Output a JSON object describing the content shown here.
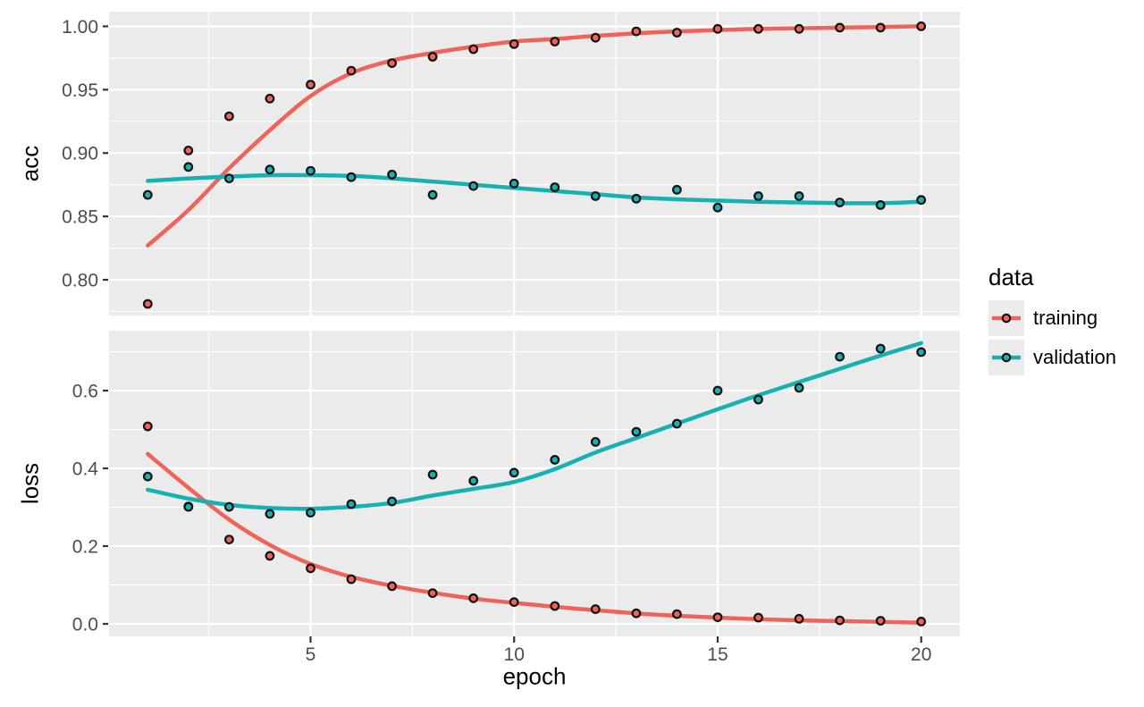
{
  "chart_data": {
    "type": "scatter",
    "title": "",
    "xlabel": "epoch",
    "x": [
      1,
      2,
      3,
      4,
      5,
      6,
      7,
      8,
      9,
      10,
      11,
      12,
      13,
      14,
      15,
      16,
      17,
      18,
      19,
      20
    ],
    "xlim": [
      0.05,
      20.95
    ],
    "x_major": [
      {
        "label": "5",
        "v": 5
      },
      {
        "label": "10",
        "v": 10
      },
      {
        "label": "15",
        "v": 15
      },
      {
        "label": "20",
        "v": 20
      }
    ],
    "x_minor": [
      2.5,
      7.5,
      12.5,
      17.5
    ],
    "grid": "major+minor, white on grey panel",
    "legend": {
      "title": "data",
      "position": "right",
      "entries": [
        "training",
        "validation"
      ]
    },
    "facets": [
      {
        "ylabel": "acc",
        "ylim": [
          0.7718,
          1.0116
        ],
        "y_major": [
          {
            "label": "1.00",
            "v": 1.0
          },
          {
            "label": "0.95",
            "v": 0.95
          },
          {
            "label": "0.90",
            "v": 0.9
          },
          {
            "label": "0.85",
            "v": 0.85
          },
          {
            "label": "0.80",
            "v": 0.8
          }
        ],
        "y_minor": [
          0.775,
          0.825,
          0.875,
          0.925,
          0.975
        ],
        "series": [
          {
            "name": "training",
            "points": [
              0.781,
              0.902,
              0.929,
              0.943,
              0.954,
              0.965,
              0.971,
              0.976,
              0.982,
              0.986,
              0.988,
              0.991,
              0.996,
              0.995,
              0.998,
              0.998,
              0.998,
              0.999,
              0.999,
              1.0
            ],
            "smooth": [
              0.827,
              0.855,
              0.888,
              0.918,
              0.945,
              0.963,
              0.973,
              0.979,
              0.984,
              0.988,
              0.99,
              0.9925,
              0.9945,
              0.996,
              0.997,
              0.998,
              0.9985,
              0.999,
              0.9995,
              1.0
            ]
          },
          {
            "name": "validation",
            "points": [
              0.867,
              0.889,
              0.88,
              0.887,
              0.886,
              0.881,
              0.883,
              0.867,
              0.874,
              0.876,
              0.873,
              0.866,
              0.864,
              0.871,
              0.857,
              0.866,
              0.866,
              0.861,
              0.859,
              0.863
            ],
            "smooth": [
              0.878,
              0.88,
              0.8815,
              0.8825,
              0.8825,
              0.882,
              0.88,
              0.8775,
              0.875,
              0.8725,
              0.87,
              0.8675,
              0.865,
              0.8635,
              0.8625,
              0.8615,
              0.861,
              0.8605,
              0.8605,
              0.8615
            ]
          }
        ]
      },
      {
        "ylabel": "loss",
        "ylim": [
          -0.0322,
          0.754
        ],
        "y_major": [
          {
            "label": "0.6",
            "v": 0.6
          },
          {
            "label": "0.4",
            "v": 0.4
          },
          {
            "label": "0.2",
            "v": 0.2
          },
          {
            "label": "0.0",
            "v": 0.0
          }
        ],
        "y_minor": [
          0.1,
          0.3,
          0.5,
          0.7
        ],
        "series": [
          {
            "name": "training",
            "points": [
              0.508,
              0.302,
              0.217,
              0.175,
              0.143,
              0.115,
              0.097,
              0.079,
              0.066,
              0.056,
              0.046,
              0.038,
              0.027,
              0.025,
              0.017,
              0.016,
              0.013,
              0.009,
              0.008,
              0.006
            ],
            "smooth": [
              0.437,
              0.35,
              0.268,
              0.203,
              0.154,
              0.121,
              0.098,
              0.08,
              0.065,
              0.054,
              0.044,
              0.035,
              0.027,
              0.021,
              0.016,
              0.012,
              0.009,
              0.007,
              0.005,
              0.003
            ]
          },
          {
            "name": "validation",
            "points": [
              0.379,
              0.301,
              0.301,
              0.283,
              0.286,
              0.308,
              0.315,
              0.384,
              0.368,
              0.389,
              0.422,
              0.468,
              0.494,
              0.515,
              0.6,
              0.577,
              0.607,
              0.687,
              0.708,
              0.699
            ],
            "smooth": [
              0.345,
              0.322,
              0.306,
              0.298,
              0.296,
              0.301,
              0.311,
              0.33,
              0.347,
              0.365,
              0.398,
              0.441,
              0.478,
              0.515,
              0.552,
              0.588,
              0.622,
              0.656,
              0.69,
              0.722
            ]
          }
        ]
      }
    ],
    "colors": {
      "training": "#F0635B",
      "validation": "#17B1B4",
      "panel_bg": "#EBEBEB",
      "gridline": "#FFFFFF",
      "point_outline": "#111111",
      "tick_mark": "#333333",
      "tick_label": "#4D4D4D",
      "axis_title": "#000000",
      "legend_key_bg": "#ECECEC"
    }
  }
}
